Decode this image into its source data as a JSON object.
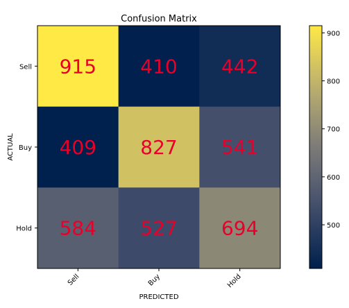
{
  "chart_data": {
    "type": "heatmap",
    "title": "Confusion Matrix",
    "xlabel": "PREDICTED",
    "ylabel": "ACTUAL",
    "x_categories": [
      "Sell",
      "Buy",
      "Hold"
    ],
    "y_categories": [
      "Sell",
      "Buy",
      "Hold"
    ],
    "values": [
      [
        915,
        410,
        442
      ],
      [
        409,
        827,
        541
      ],
      [
        584,
        527,
        694
      ]
    ],
    "value_label_color": "#e8002a",
    "colormap": "cividis",
    "color_range": [
      409,
      915
    ],
    "colorbar_ticks": [
      500,
      600,
      700,
      800,
      900
    ],
    "x_tick_rotation_deg": 45
  }
}
